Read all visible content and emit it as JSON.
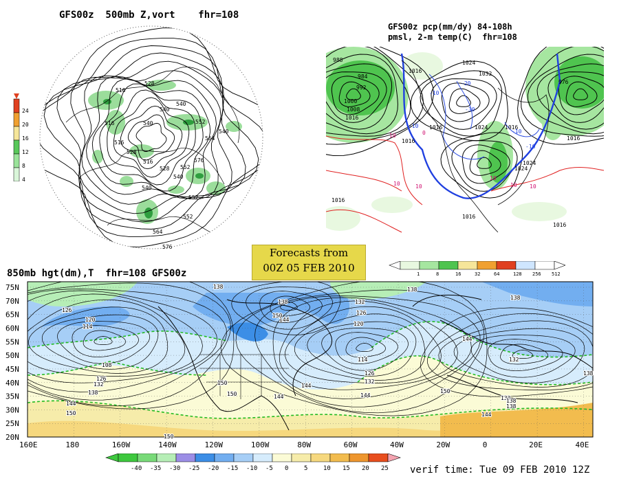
{
  "panels": {
    "vort": {
      "title": "GFS00z  500mb Z,vort    fhr=108",
      "colorbar": [
        {
          "label": "24",
          "color": "#e04020"
        },
        {
          "label": "20",
          "color": "#f0a030"
        },
        {
          "label": "16",
          "color": "#f6e69a"
        },
        {
          "label": "12",
          "color": "#58c85a"
        },
        {
          "label": "8",
          "color": "#9ae39a"
        },
        {
          "label": "4",
          "color": "#d9f6d9"
        }
      ],
      "contour_labels": [
        "516",
        "528",
        "540",
        "540",
        "552",
        "564",
        "576",
        "540",
        "552",
        "516",
        "528",
        "516",
        "528",
        "540",
        "552",
        "564",
        "576",
        "516",
        "540",
        "552",
        "540"
      ]
    },
    "precip": {
      "title_line1": "GFS00z pcp(mm/dy) 84-108h",
      "title_line2": "pmsl, 2-m temp(C)  fhr=108",
      "colorbar": [
        {
          "label": "1",
          "color": "#e8f8e0"
        },
        {
          "label": "8",
          "color": "#a6e6a0"
        },
        {
          "label": "16",
          "color": "#4fc44f"
        },
        {
          "label": "32",
          "color": "#f6e69a"
        },
        {
          "label": "64",
          "color": "#f0a030"
        },
        {
          "label": "128",
          "color": "#e04020"
        },
        {
          "label": "256",
          "color": "#cfe6ff"
        },
        {
          "label": "512",
          "color": "#ffffff"
        }
      ],
      "isobar_labels": [
        "988",
        "1000",
        "1008",
        "1016",
        "984",
        "992",
        "1016",
        "1024",
        "1032",
        "1016",
        "1024",
        "1016",
        "976",
        "1016",
        "1024",
        "1016",
        "1016",
        "1016",
        "1016",
        "1024"
      ],
      "temp_labels": [
        "-10",
        "-20",
        "-30",
        "-10",
        "0",
        "10",
        "-10",
        "10",
        "-10",
        "10",
        "10",
        "10",
        "10"
      ]
    },
    "banner": {
      "line1": "Forecasts from",
      "line2": "00Z 05 FEB 2010"
    },
    "hgt850": {
      "title": "850mb hgt(dm),T  fhr=108 GFS00z",
      "lat_labels": [
        "75N",
        "70N",
        "65N",
        "60N",
        "55N",
        "50N",
        "45N",
        "40N",
        "35N",
        "30N",
        "25N",
        "20N"
      ],
      "lon_labels": [
        "160E",
        "180",
        "160W",
        "140W",
        "120W",
        "100W",
        "80W",
        "60W",
        "40W",
        "20W",
        "0",
        "20E",
        "40E"
      ],
      "contour_labels": [
        "138",
        "126",
        "120",
        "114",
        "108",
        "126",
        "132",
        "138",
        "144",
        "150",
        "150",
        "138",
        "144",
        "150",
        "144",
        "150",
        "132",
        "126",
        "120",
        "114",
        "126",
        "132",
        "144",
        "150",
        "138",
        "132",
        "144",
        "138",
        "138",
        "144",
        "132",
        "138",
        "150",
        "144",
        "138"
      ],
      "colorbar": [
        {
          "label": "-40",
          "color": "#3ec83e"
        },
        {
          "label": "-35",
          "color": "#78da78"
        },
        {
          "label": "-30",
          "color": "#b6eeb6"
        },
        {
          "label": "-25",
          "color": "#9c8ee6"
        },
        {
          "label": "-20",
          "color": "#3c8ee6"
        },
        {
          "label": "-15",
          "color": "#72aef0"
        },
        {
          "label": "-10",
          "color": "#a6cef6"
        },
        {
          "label": "-5",
          "color": "#d6ecfc"
        },
        {
          "label": "0",
          "color": "#fbfbd6"
        },
        {
          "label": "5",
          "color": "#f6ecaa"
        },
        {
          "label": "10",
          "color": "#f6d87e"
        },
        {
          "label": "15",
          "color": "#f2bc4e"
        },
        {
          "label": "20",
          "color": "#ee962e"
        },
        {
          "label": "25",
          "color": "#e84e1e"
        }
      ],
      "verif": "verif time: Tue 09 FEB 2010 12Z"
    }
  }
}
